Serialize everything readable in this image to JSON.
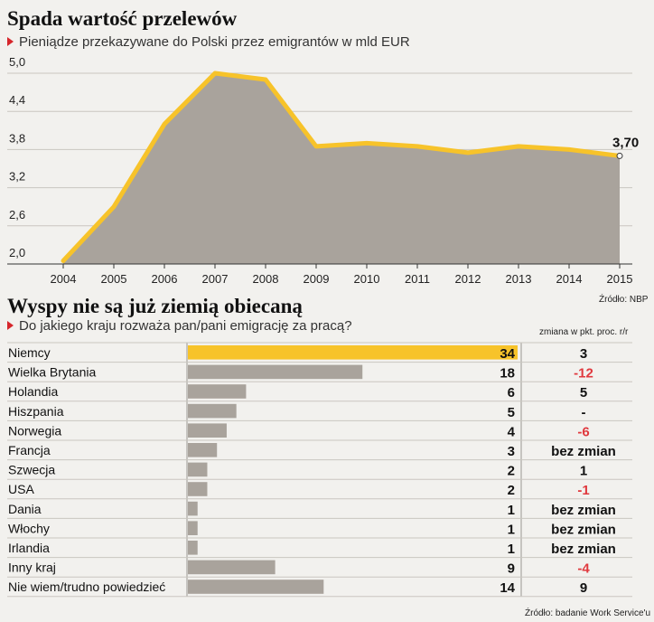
{
  "chart_data": [
    {
      "type": "area",
      "title": "Spada wartość przelewów",
      "subtitle": "Pieniądze przekazywane do Polski przez emigrantów w mld EUR",
      "x": [
        "2004",
        "2005",
        "2006",
        "2007",
        "2008",
        "2009",
        "2010",
        "2011",
        "2012",
        "2013",
        "2014",
        "2015"
      ],
      "values": [
        2.05,
        2.9,
        4.2,
        5.0,
        4.9,
        3.85,
        3.9,
        3.85,
        3.75,
        3.85,
        3.8,
        3.7
      ],
      "y_ticks": [
        "5,0",
        "4,4",
        "3,8",
        "3,2",
        "2,6",
        "2,0"
      ],
      "ylim": [
        2.0,
        5.0
      ],
      "end_label": "3,70",
      "source": "Źródło: NBP",
      "colors": {
        "line": "#f7c32a",
        "area": "#a9a39c"
      }
    },
    {
      "type": "bar",
      "title": "Wyspy nie są już ziemią obiecaną",
      "subtitle": "Do jakiego kraju rozważa pan/pani emigrację za pracą?",
      "change_header": "zmiana w pkt. proc. r/r",
      "categories": [
        "Niemcy",
        "Wielka Brytania",
        "Holandia",
        "Hiszpania",
        "Norwegia",
        "Francja",
        "Szwecja",
        "USA",
        "Dania",
        "Włochy",
        "Irlandia",
        "Inny kraj",
        "Nie wiem/trudno powiedzieć"
      ],
      "values": [
        34,
        18,
        6,
        5,
        4,
        3,
        2,
        2,
        1,
        1,
        1,
        9,
        14
      ],
      "value_labels": [
        "34",
        "18",
        "6",
        "5",
        "4",
        "3",
        "2",
        "2",
        "1",
        "1",
        "1",
        "9",
        "14"
      ],
      "changes": [
        "3",
        "-12",
        "5",
        "-",
        "-6",
        "bez zmian",
        "1",
        "-1",
        "bez zmian",
        "bez zmian",
        "bez zmian",
        "-4",
        "9"
      ],
      "source": "Źródło: badanie Work Service'u",
      "colors": {
        "highlight": "#f7c32a",
        "bar": "#a9a39c",
        "negative": "#e0393e"
      }
    }
  ]
}
